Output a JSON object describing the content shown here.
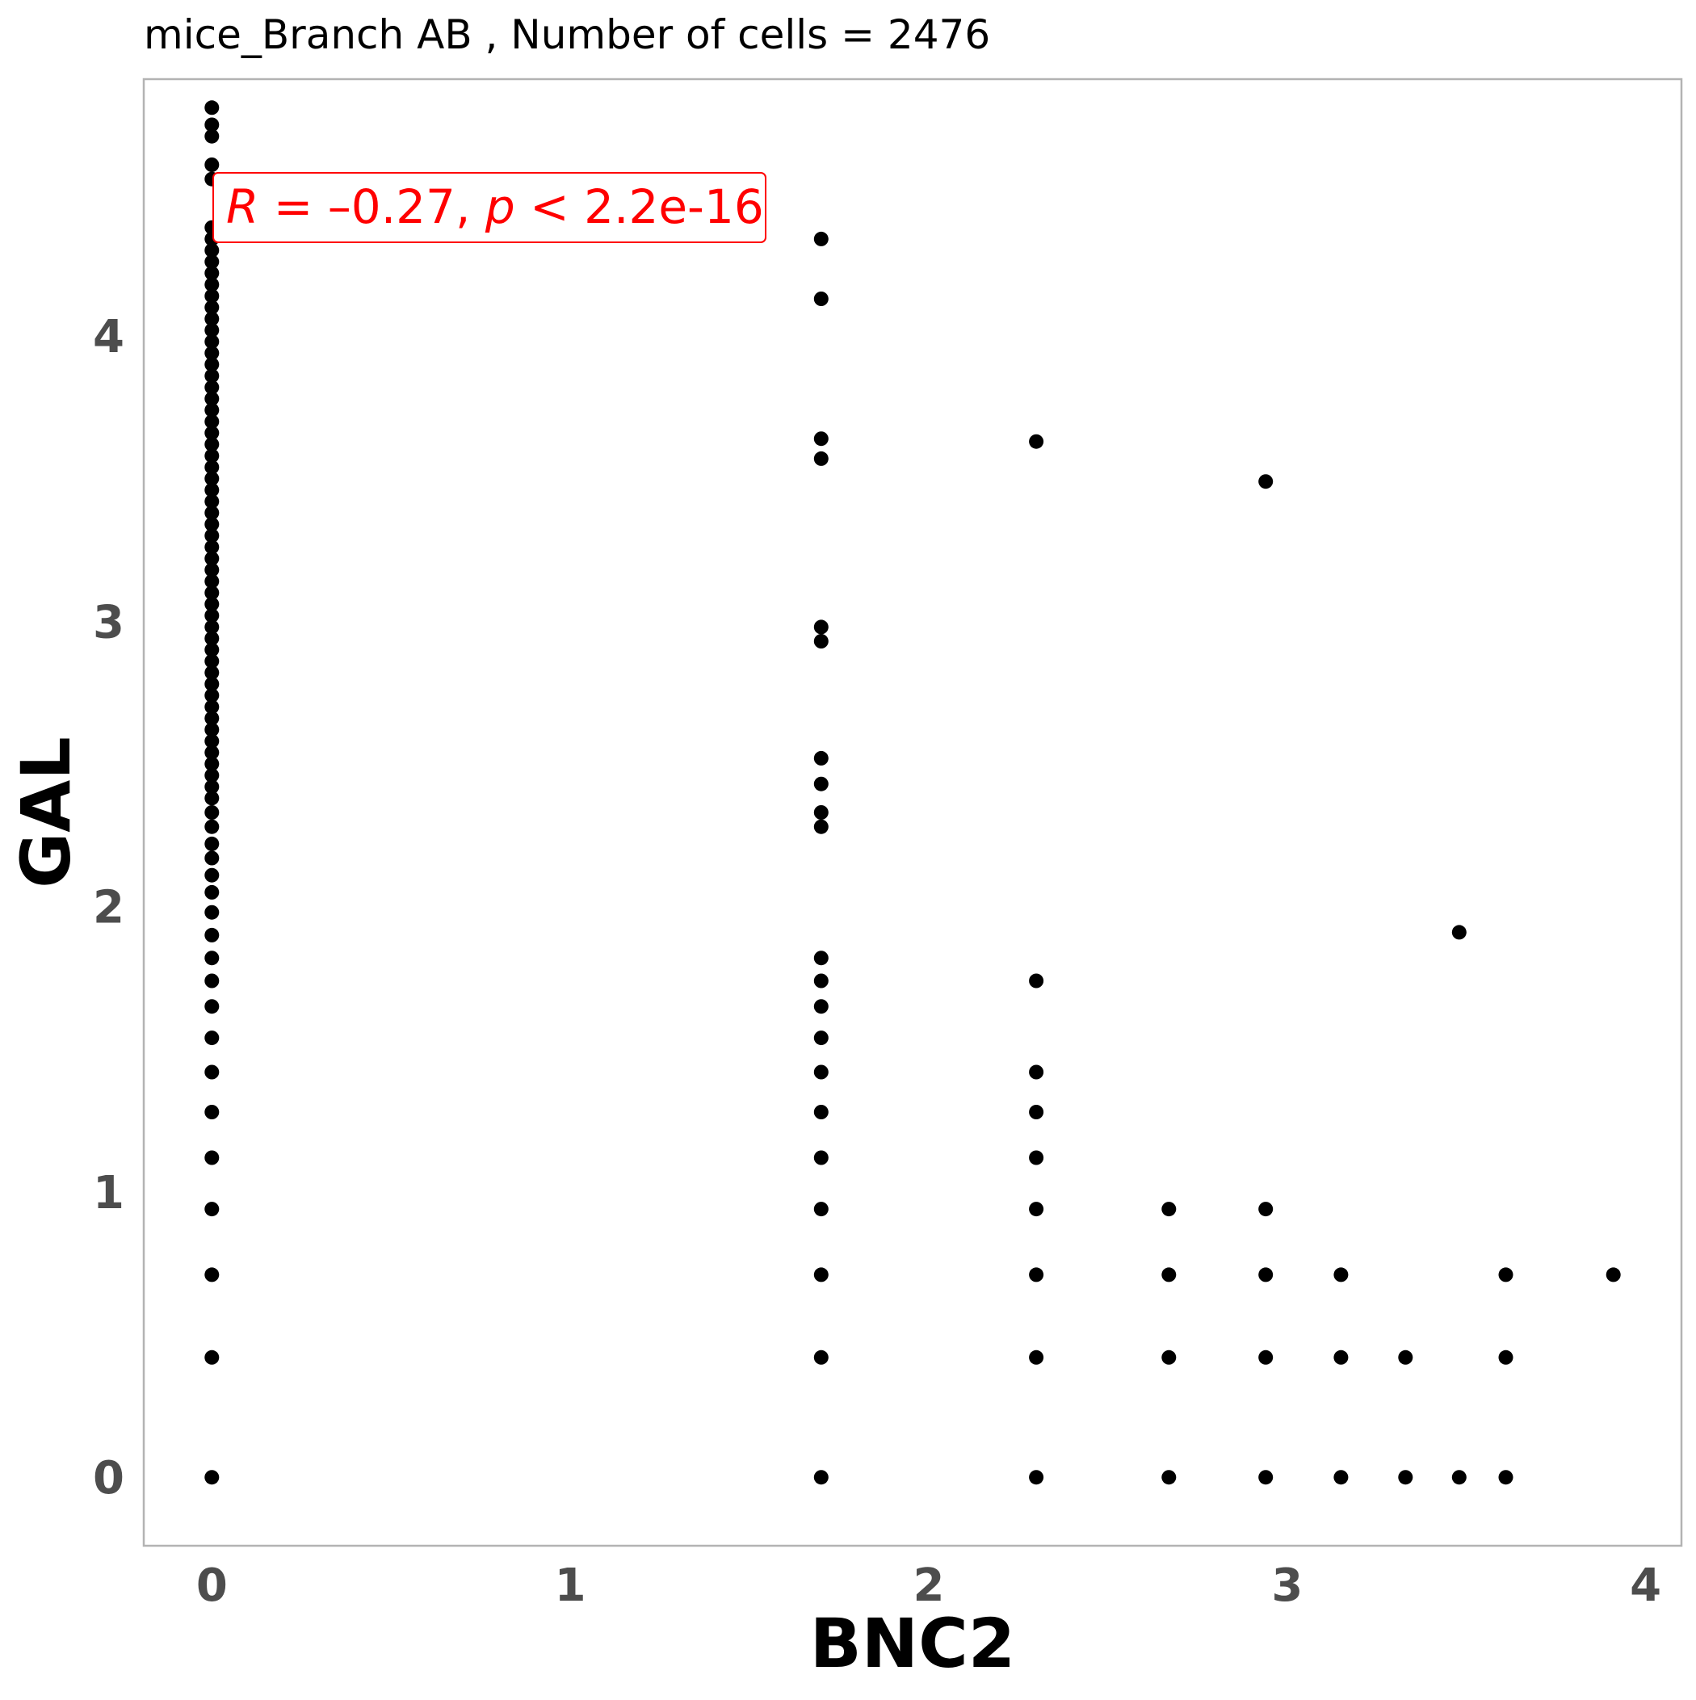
{
  "chart_data": {
    "type": "scatter",
    "title": "mice_Branch AB , Number of cells =  2476",
    "xlabel": "BNC2",
    "ylabel": "GAL",
    "xlim": [
      -0.19,
      4.1
    ],
    "ylim": [
      -0.24,
      4.9
    ],
    "x_ticks": [
      "0",
      "1",
      "2",
      "3",
      "4"
    ],
    "y_ticks": [
      "0",
      "1",
      "2",
      "3",
      "4"
    ],
    "grid": false,
    "annotation": {
      "R_symbol": "R",
      "equals": " = ",
      "R_value": "–0.27",
      "comma": ", ",
      "p_symbol": "p",
      "p_text": " < 2.2e-16"
    },
    "point_color": "#000000",
    "annotation_color": "#ff0000",
    "columns": [
      {
        "x": 0,
        "y": [
          0,
          0.42,
          0.71,
          0.94,
          1.12,
          1.28,
          1.42,
          1.54,
          1.65,
          1.74,
          1.82,
          1.9,
          1.98,
          2.05,
          2.11,
          2.17,
          2.22,
          2.28,
          2.33,
          2.38,
          2.42,
          2.46,
          2.5,
          2.54,
          2.58,
          2.62,
          2.66,
          2.7,
          2.74,
          2.78,
          2.82,
          2.86,
          2.9,
          2.94,
          2.98,
          3.02,
          3.06,
          3.1,
          3.14,
          3.18,
          3.22,
          3.26,
          3.3,
          3.34,
          3.38,
          3.42,
          3.46,
          3.5,
          3.54,
          3.58,
          3.62,
          3.66,
          3.7,
          3.74,
          3.78,
          3.82,
          3.86,
          3.9,
          3.94,
          3.98,
          4.02,
          4.06,
          4.1,
          4.14,
          4.18,
          4.22,
          4.26,
          4.3,
          4.34,
          4.38,
          4.55,
          4.6,
          4.7,
          4.74,
          4.8
        ]
      },
      {
        "x": 1.7,
        "y": [
          0,
          0.42,
          0.71,
          0.94,
          1.12,
          1.28,
          1.42,
          1.54,
          1.65,
          1.74,
          1.82,
          2.28,
          2.33,
          2.43,
          2.52,
          2.93,
          2.98,
          3.57,
          3.64,
          4.13,
          4.34
        ]
      },
      {
        "x": 2.3,
        "y": [
          0,
          0.42,
          0.71,
          0.94,
          1.12,
          1.28,
          1.42,
          1.74,
          3.63
        ]
      },
      {
        "x": 2.67,
        "y": [
          0,
          0.42,
          0.71,
          0.94
        ]
      },
      {
        "x": 2.94,
        "y": [
          0,
          0.42,
          0.71,
          0.94,
          3.49
        ]
      },
      {
        "x": 3.15,
        "y": [
          0,
          0.42,
          0.71
        ]
      },
      {
        "x": 3.33,
        "y": [
          0,
          0.42
        ]
      },
      {
        "x": 3.48,
        "y": [
          0,
          1.91
        ]
      },
      {
        "x": 3.61,
        "y": [
          0,
          0.42,
          0.71
        ]
      },
      {
        "x": 3.91,
        "y": [
          0.71
        ]
      }
    ]
  }
}
